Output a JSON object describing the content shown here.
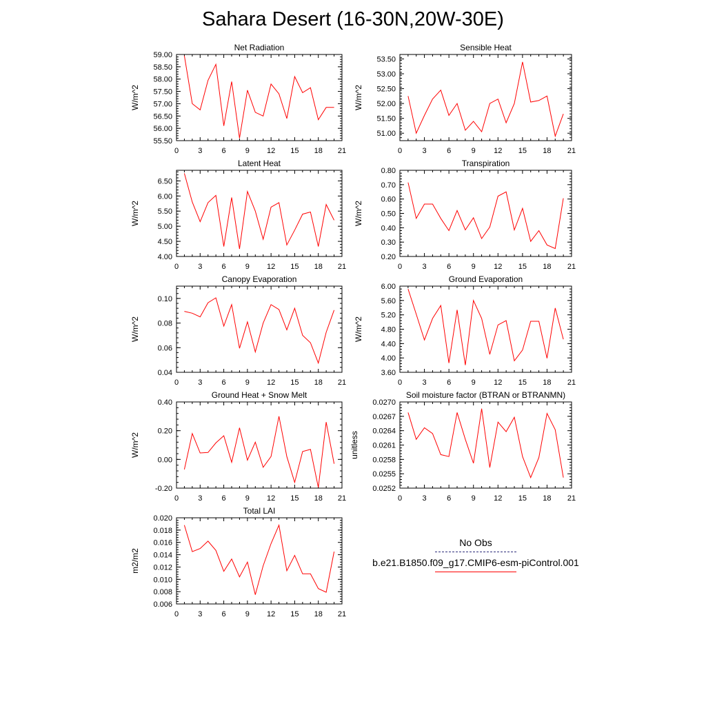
{
  "title": "Sahara Desert (16-30N,20W-30E)",
  "legend": {
    "obs_label": "No Obs",
    "model_label": "b.e21.B1850.f09_g17.CMIP6-esm-piControl.001",
    "obs_color": "#2a2a7a",
    "model_color": "#ff0000"
  },
  "chart_data": [
    {
      "type": "line",
      "title": "Net Radiation",
      "ylabel": "W/m^2",
      "xlim": [
        0,
        21
      ],
      "xticks": [
        "0",
        "3",
        "6",
        "9",
        "12",
        "15",
        "18",
        "21"
      ],
      "ylim": [
        55.5,
        59.0
      ],
      "yticks": [
        "55.50",
        "56.00",
        "56.50",
        "57.00",
        "57.50",
        "58.00",
        "58.50",
        "59.00"
      ],
      "series": [
        {
          "x": [
            1,
            2,
            3,
            4,
            5,
            6,
            7,
            8,
            9,
            10,
            11,
            12,
            13,
            14,
            15,
            16,
            17,
            18,
            19,
            20
          ],
          "values": [
            58.95,
            57.0,
            56.75,
            57.95,
            58.6,
            56.1,
            57.9,
            55.6,
            57.55,
            56.65,
            56.5,
            57.8,
            57.4,
            56.4,
            58.1,
            57.45,
            57.65,
            56.35,
            56.85,
            56.85
          ]
        }
      ]
    },
    {
      "type": "line",
      "title": "Sensible Heat",
      "ylabel": "W/m^2",
      "xlim": [
        0,
        21
      ],
      "xticks": [
        "0",
        "3",
        "6",
        "9",
        "12",
        "15",
        "18",
        "21"
      ],
      "ylim": [
        50.75,
        53.65
      ],
      "yticks": [
        "51.00",
        "51.50",
        "52.00",
        "52.50",
        "53.00",
        "53.50"
      ],
      "series": [
        {
          "x": [
            1,
            2,
            3,
            4,
            5,
            6,
            7,
            8,
            9,
            10,
            11,
            12,
            13,
            14,
            15,
            16,
            17,
            18,
            19,
            20
          ],
          "values": [
            52.25,
            51.0,
            51.6,
            52.15,
            52.45,
            51.6,
            52.0,
            51.1,
            51.4,
            51.05,
            52.0,
            52.15,
            51.35,
            52.0,
            53.4,
            52.05,
            52.1,
            52.25,
            50.9,
            51.65
          ]
        }
      ]
    },
    {
      "type": "line",
      "title": "Latent Heat",
      "ylabel": "W/m^2",
      "xlim": [
        0,
        21
      ],
      "xticks": [
        "0",
        "3",
        "6",
        "9",
        "12",
        "15",
        "18",
        "21"
      ],
      "ylim": [
        4.0,
        6.85
      ],
      "yticks": [
        "4.00",
        "4.50",
        "5.00",
        "5.50",
        "6.00",
        "6.50"
      ],
      "series": [
        {
          "x": [
            1,
            2,
            3,
            4,
            5,
            6,
            7,
            8,
            9,
            10,
            11,
            12,
            13,
            14,
            15,
            16,
            17,
            18,
            19,
            20
          ],
          "values": [
            6.75,
            5.8,
            5.15,
            5.78,
            6.02,
            4.33,
            5.95,
            4.25,
            6.15,
            5.5,
            4.57,
            5.63,
            5.78,
            4.38,
            4.87,
            5.4,
            5.47,
            4.33,
            5.72,
            5.2
          ]
        }
      ]
    },
    {
      "type": "line",
      "title": "Transpiration",
      "ylabel": "W/m^2",
      "xlim": [
        0,
        21
      ],
      "xticks": [
        "0",
        "3",
        "6",
        "9",
        "12",
        "15",
        "18",
        "21"
      ],
      "ylim": [
        0.2,
        0.8
      ],
      "yticks": [
        "0.20",
        "0.30",
        "0.40",
        "0.50",
        "0.60",
        "0.70",
        "0.80"
      ],
      "series": [
        {
          "x": [
            1,
            2,
            3,
            4,
            5,
            6,
            7,
            8,
            9,
            10,
            11,
            12,
            13,
            14,
            15,
            16,
            17,
            18,
            19,
            20
          ],
          "values": [
            0.715,
            0.465,
            0.565,
            0.565,
            0.465,
            0.38,
            0.52,
            0.385,
            0.47,
            0.325,
            0.405,
            0.62,
            0.65,
            0.385,
            0.535,
            0.305,
            0.38,
            0.28,
            0.255,
            0.605
          ]
        }
      ]
    },
    {
      "type": "line",
      "title": "Canopy Evaporation",
      "ylabel": "W/m^2",
      "xlim": [
        0,
        21
      ],
      "xticks": [
        "0",
        "3",
        "6",
        "9",
        "12",
        "15",
        "18",
        "21"
      ],
      "ylim": [
        0.04,
        0.11
      ],
      "yticks": [
        "0.04",
        "0.06",
        "0.08",
        "0.10"
      ],
      "series": [
        {
          "x": [
            1,
            2,
            3,
            4,
            5,
            6,
            7,
            8,
            9,
            10,
            11,
            12,
            13,
            14,
            15,
            16,
            17,
            18,
            19,
            20
          ],
          "values": [
            0.0895,
            0.088,
            0.085,
            0.0965,
            0.1005,
            0.0775,
            0.095,
            0.0595,
            0.081,
            0.0565,
            0.08,
            0.095,
            0.091,
            0.0745,
            0.092,
            0.07,
            0.064,
            0.0475,
            0.0725,
            0.0905
          ]
        }
      ]
    },
    {
      "type": "line",
      "title": "Ground Evaporation",
      "ylabel": "W/m^2",
      "xlim": [
        0,
        21
      ],
      "xticks": [
        "0",
        "3",
        "6",
        "9",
        "12",
        "15",
        "18",
        "21"
      ],
      "ylim": [
        3.6,
        6.0
      ],
      "yticks": [
        "3.60",
        "4.00",
        "4.40",
        "4.80",
        "5.20",
        "5.60",
        "6.00"
      ],
      "series": [
        {
          "x": [
            1,
            2,
            3,
            4,
            5,
            6,
            7,
            8,
            9,
            10,
            11,
            12,
            13,
            14,
            15,
            16,
            17,
            18,
            19,
            20
          ],
          "values": [
            5.92,
            5.22,
            4.5,
            5.1,
            5.46,
            3.86,
            5.34,
            3.8,
            5.6,
            5.1,
            4.1,
            4.92,
            5.04,
            3.92,
            4.22,
            5.02,
            5.02,
            3.99,
            5.39,
            4.52
          ]
        }
      ]
    },
    {
      "type": "line",
      "title": "Ground Heat + Snow Melt",
      "ylabel": "W/m^2",
      "xlim": [
        0,
        21
      ],
      "xticks": [
        "0",
        "3",
        "6",
        "9",
        "12",
        "15",
        "18",
        "21"
      ],
      "ylim": [
        -0.2,
        0.4
      ],
      "yticks": [
        "-0.20",
        "0.00",
        "0.20",
        "0.40"
      ],
      "series": [
        {
          "x": [
            1,
            2,
            3,
            4,
            5,
            6,
            7,
            8,
            9,
            10,
            11,
            12,
            13,
            14,
            15,
            16,
            17,
            18,
            19,
            20
          ],
          "values": [
            -0.07,
            0.18,
            0.045,
            0.048,
            0.115,
            0.165,
            -0.02,
            0.22,
            -0.005,
            0.12,
            -0.055,
            0.02,
            0.3,
            0.02,
            -0.16,
            0.055,
            0.07,
            -0.195,
            0.26,
            -0.03
          ]
        }
      ]
    },
    {
      "type": "line",
      "title": "Soil moisture factor (BTRAN or BTRANMN)",
      "ylabel": "unitless",
      "xlim": [
        0,
        21
      ],
      "xticks": [
        "0",
        "3",
        "6",
        "9",
        "12",
        "15",
        "18",
        "21"
      ],
      "ylim": [
        0.0252,
        0.027
      ],
      "yticks": [
        "0.0252",
        "0.0255",
        "0.0258",
        "0.0261",
        "0.0264",
        "0.0267",
        "0.0270"
      ],
      "series": [
        {
          "x": [
            1,
            2,
            3,
            4,
            5,
            6,
            7,
            8,
            9,
            10,
            11,
            12,
            13,
            14,
            15,
            16,
            17,
            18,
            19,
            20
          ],
          "values": [
            0.02678,
            0.02622,
            0.02646,
            0.02634,
            0.0259,
            0.02586,
            0.02678,
            0.02622,
            0.02572,
            0.02686,
            0.02563,
            0.02658,
            0.02638,
            0.02668,
            0.02586,
            0.02542,
            0.02584,
            0.02676,
            0.02642,
            0.02542
          ]
        }
      ]
    },
    {
      "type": "line",
      "title": "Total LAI",
      "ylabel": "m2/m2",
      "xlim": [
        0,
        21
      ],
      "xticks": [
        "0",
        "3",
        "6",
        "9",
        "12",
        "15",
        "18",
        "21"
      ],
      "ylim": [
        0.006,
        0.02
      ],
      "yticks": [
        "0.006",
        "0.008",
        "0.010",
        "0.012",
        "0.014",
        "0.016",
        "0.018",
        "0.020"
      ],
      "series": [
        {
          "x": [
            1,
            2,
            3,
            4,
            5,
            6,
            7,
            8,
            9,
            10,
            11,
            12,
            13,
            14,
            15,
            16,
            17,
            18,
            19,
            20
          ],
          "values": [
            0.0188,
            0.0145,
            0.015,
            0.0162,
            0.0147,
            0.0113,
            0.0133,
            0.0104,
            0.0128,
            0.0075,
            0.0122,
            0.0158,
            0.0188,
            0.0114,
            0.0139,
            0.0109,
            0.0109,
            0.0085,
            0.0079,
            0.0145
          ]
        }
      ]
    }
  ]
}
